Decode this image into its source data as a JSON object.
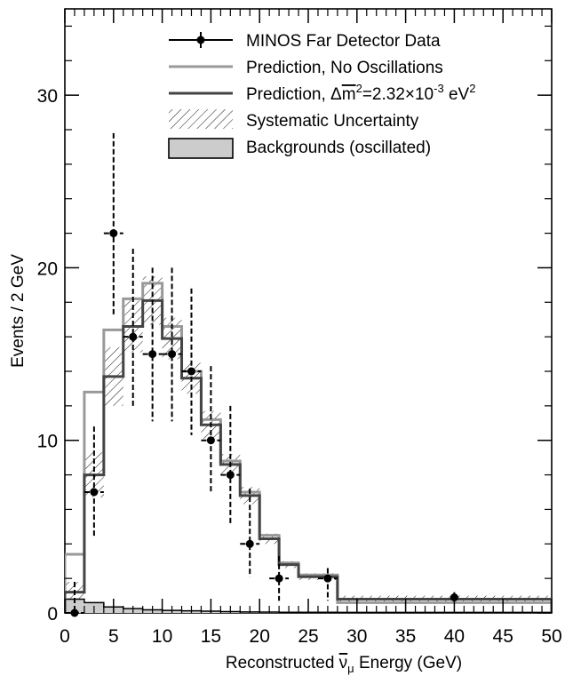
{
  "chart_data": {
    "type": "histogram",
    "xlabel_prefix": "Reconstructed ",
    "xlabel_symbol": "ν",
    "xlabel_sub": "μ",
    "xlabel_suffix": " Energy (GeV)",
    "ylabel": "Events / 2 GeV",
    "xlim": [
      0,
      50
    ],
    "ylim": [
      0,
      35
    ],
    "xticks": [
      0,
      5,
      10,
      15,
      20,
      25,
      30,
      35,
      40,
      45,
      50
    ],
    "xtick_labels": [
      "0",
      "5",
      "10",
      "15",
      "20",
      "25",
      "30",
      "35",
      "40",
      "45",
      "50"
    ],
    "yticks": [
      0,
      10,
      20,
      30
    ],
    "ytick_labels": [
      "0",
      "10",
      "20",
      "30"
    ],
    "bin_edges": [
      0,
      2,
      4,
      6,
      8,
      10,
      12,
      14,
      16,
      18,
      20,
      22,
      24,
      26,
      28,
      30,
      50
    ],
    "legend": {
      "data": "MINOS Far Detector Data",
      "no_osc": "Prediction, No Oscillations",
      "osc_prefix": "Prediction, Δ",
      "osc_m": "m",
      "osc_sq": "2",
      "osc_eq": "=2.32×10",
      "osc_exp": "-3",
      "osc_unit": " eV",
      "osc_unit_sq": "2",
      "syst": "Systematic Uncertainty",
      "bkg": "Backgrounds (oscillated)"
    },
    "series": [
      {
        "key": "no_osc",
        "color": "#999999",
        "values": [
          3.4,
          12.8,
          16.4,
          18.2,
          19.1,
          16.6,
          14.0,
          11.2,
          8.8,
          7.0,
          4.5,
          2.9,
          2.2,
          2.2,
          0.6,
          0.6
        ]
      },
      {
        "key": "osc",
        "color": "#444444",
        "values": [
          1.2,
          8.0,
          13.7,
          16.6,
          18.1,
          15.9,
          13.6,
          10.9,
          8.6,
          6.8,
          4.3,
          2.8,
          2.1,
          2.1,
          0.8,
          0.8
        ],
        "syst_band": [
          0.6,
          1.3,
          1.7,
          1.5,
          1.4,
          1.2,
          0.9,
          0.8,
          0.6,
          0.5,
          0.3,
          0.2,
          0.2,
          0.2,
          0.2,
          0.2
        ]
      },
      {
        "key": "bkg",
        "fill": "#cccccc",
        "values": [
          0.8,
          0.6,
          0.35,
          0.25,
          0.18,
          0.15,
          0.12,
          0.1,
          0.08,
          0.06,
          0.05,
          0.04,
          0.04,
          0.04,
          0.03,
          0.03
        ]
      }
    ],
    "data_points": [
      {
        "x": 1,
        "y": 0,
        "xerr": 1,
        "yerr_lo": 0,
        "yerr_hi": 1.8
      },
      {
        "x": 3,
        "y": 7,
        "xerr": 1,
        "yerr_lo": 2.6,
        "yerr_hi": 3.8
      },
      {
        "x": 5,
        "y": 22,
        "xerr": 1,
        "yerr_lo": 4.7,
        "yerr_hi": 5.8
      },
      {
        "x": 7,
        "y": 16,
        "xerr": 1,
        "yerr_lo": 4.0,
        "yerr_hi": 5.1
      },
      {
        "x": 9,
        "y": 15,
        "xerr": 1,
        "yerr_lo": 3.9,
        "yerr_hi": 5.0
      },
      {
        "x": 11,
        "y": 15,
        "xerr": 1,
        "yerr_lo": 3.9,
        "yerr_hi": 5.0
      },
      {
        "x": 13,
        "y": 14,
        "xerr": 1,
        "yerr_lo": 3.7,
        "yerr_hi": 4.8
      },
      {
        "x": 15,
        "y": 10,
        "xerr": 1,
        "yerr_lo": 3.1,
        "yerr_hi": 4.3
      },
      {
        "x": 17,
        "y": 8,
        "xerr": 1,
        "yerr_lo": 2.8,
        "yerr_hi": 4.0
      },
      {
        "x": 19,
        "y": 4,
        "xerr": 1,
        "yerr_lo": 1.9,
        "yerr_hi": 3.2
      },
      {
        "x": 22,
        "y": 2,
        "xerr": 1,
        "yerr_lo": 1.3,
        "yerr_hi": 1.3
      },
      {
        "x": 27,
        "y": 2,
        "xerr": 1,
        "yerr_lo": 1.3,
        "yerr_hi": 0.6
      },
      {
        "x": 40,
        "y": 0.9,
        "xerr": 0,
        "yerr_lo": 0,
        "yerr_hi": 0.3
      }
    ]
  }
}
